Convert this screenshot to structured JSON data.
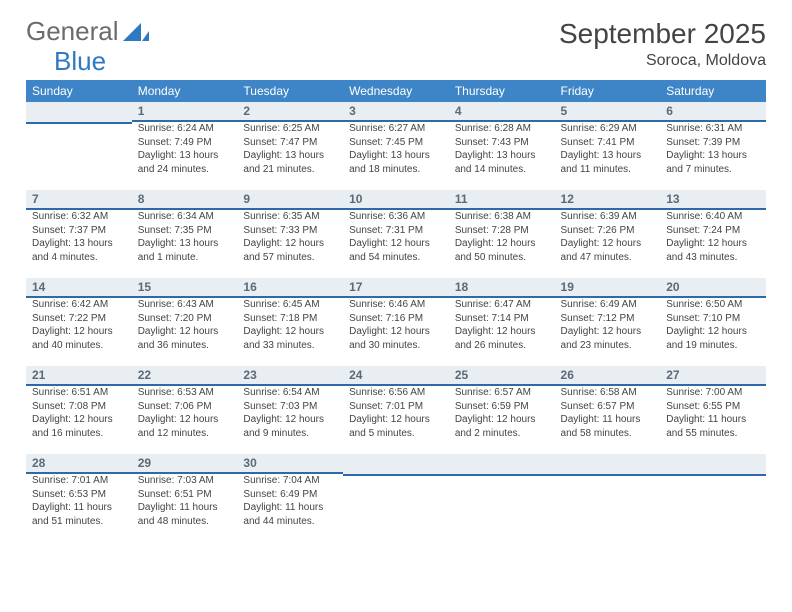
{
  "logo": {
    "word1": "General",
    "word2": "Blue"
  },
  "title": "September 2025",
  "location": "Soroca, Moldova",
  "colors": {
    "header_bg": "#3d85c6",
    "header_text": "#ffffff",
    "daynum_bg": "#e9eef2",
    "daynum_border": "#2f6aa8",
    "text": "#444444",
    "logo_gray": "#6b6b6b",
    "logo_blue": "#2f79c2"
  },
  "weekdays": [
    "Sunday",
    "Monday",
    "Tuesday",
    "Wednesday",
    "Thursday",
    "Friday",
    "Saturday"
  ],
  "weeks": [
    [
      {
        "day": "",
        "sunrise": "",
        "sunset": "",
        "daylight1": "",
        "daylight2": ""
      },
      {
        "day": "1",
        "sunrise": "Sunrise: 6:24 AM",
        "sunset": "Sunset: 7:49 PM",
        "daylight1": "Daylight: 13 hours",
        "daylight2": "and 24 minutes."
      },
      {
        "day": "2",
        "sunrise": "Sunrise: 6:25 AM",
        "sunset": "Sunset: 7:47 PM",
        "daylight1": "Daylight: 13 hours",
        "daylight2": "and 21 minutes."
      },
      {
        "day": "3",
        "sunrise": "Sunrise: 6:27 AM",
        "sunset": "Sunset: 7:45 PM",
        "daylight1": "Daylight: 13 hours",
        "daylight2": "and 18 minutes."
      },
      {
        "day": "4",
        "sunrise": "Sunrise: 6:28 AM",
        "sunset": "Sunset: 7:43 PM",
        "daylight1": "Daylight: 13 hours",
        "daylight2": "and 14 minutes."
      },
      {
        "day": "5",
        "sunrise": "Sunrise: 6:29 AM",
        "sunset": "Sunset: 7:41 PM",
        "daylight1": "Daylight: 13 hours",
        "daylight2": "and 11 minutes."
      },
      {
        "day": "6",
        "sunrise": "Sunrise: 6:31 AM",
        "sunset": "Sunset: 7:39 PM",
        "daylight1": "Daylight: 13 hours",
        "daylight2": "and 7 minutes."
      }
    ],
    [
      {
        "day": "7",
        "sunrise": "Sunrise: 6:32 AM",
        "sunset": "Sunset: 7:37 PM",
        "daylight1": "Daylight: 13 hours",
        "daylight2": "and 4 minutes."
      },
      {
        "day": "8",
        "sunrise": "Sunrise: 6:34 AM",
        "sunset": "Sunset: 7:35 PM",
        "daylight1": "Daylight: 13 hours",
        "daylight2": "and 1 minute."
      },
      {
        "day": "9",
        "sunrise": "Sunrise: 6:35 AM",
        "sunset": "Sunset: 7:33 PM",
        "daylight1": "Daylight: 12 hours",
        "daylight2": "and 57 minutes."
      },
      {
        "day": "10",
        "sunrise": "Sunrise: 6:36 AM",
        "sunset": "Sunset: 7:31 PM",
        "daylight1": "Daylight: 12 hours",
        "daylight2": "and 54 minutes."
      },
      {
        "day": "11",
        "sunrise": "Sunrise: 6:38 AM",
        "sunset": "Sunset: 7:28 PM",
        "daylight1": "Daylight: 12 hours",
        "daylight2": "and 50 minutes."
      },
      {
        "day": "12",
        "sunrise": "Sunrise: 6:39 AM",
        "sunset": "Sunset: 7:26 PM",
        "daylight1": "Daylight: 12 hours",
        "daylight2": "and 47 minutes."
      },
      {
        "day": "13",
        "sunrise": "Sunrise: 6:40 AM",
        "sunset": "Sunset: 7:24 PM",
        "daylight1": "Daylight: 12 hours",
        "daylight2": "and 43 minutes."
      }
    ],
    [
      {
        "day": "14",
        "sunrise": "Sunrise: 6:42 AM",
        "sunset": "Sunset: 7:22 PM",
        "daylight1": "Daylight: 12 hours",
        "daylight2": "and 40 minutes."
      },
      {
        "day": "15",
        "sunrise": "Sunrise: 6:43 AM",
        "sunset": "Sunset: 7:20 PM",
        "daylight1": "Daylight: 12 hours",
        "daylight2": "and 36 minutes."
      },
      {
        "day": "16",
        "sunrise": "Sunrise: 6:45 AM",
        "sunset": "Sunset: 7:18 PM",
        "daylight1": "Daylight: 12 hours",
        "daylight2": "and 33 minutes."
      },
      {
        "day": "17",
        "sunrise": "Sunrise: 6:46 AM",
        "sunset": "Sunset: 7:16 PM",
        "daylight1": "Daylight: 12 hours",
        "daylight2": "and 30 minutes."
      },
      {
        "day": "18",
        "sunrise": "Sunrise: 6:47 AM",
        "sunset": "Sunset: 7:14 PM",
        "daylight1": "Daylight: 12 hours",
        "daylight2": "and 26 minutes."
      },
      {
        "day": "19",
        "sunrise": "Sunrise: 6:49 AM",
        "sunset": "Sunset: 7:12 PM",
        "daylight1": "Daylight: 12 hours",
        "daylight2": "and 23 minutes."
      },
      {
        "day": "20",
        "sunrise": "Sunrise: 6:50 AM",
        "sunset": "Sunset: 7:10 PM",
        "daylight1": "Daylight: 12 hours",
        "daylight2": "and 19 minutes."
      }
    ],
    [
      {
        "day": "21",
        "sunrise": "Sunrise: 6:51 AM",
        "sunset": "Sunset: 7:08 PM",
        "daylight1": "Daylight: 12 hours",
        "daylight2": "and 16 minutes."
      },
      {
        "day": "22",
        "sunrise": "Sunrise: 6:53 AM",
        "sunset": "Sunset: 7:06 PM",
        "daylight1": "Daylight: 12 hours",
        "daylight2": "and 12 minutes."
      },
      {
        "day": "23",
        "sunrise": "Sunrise: 6:54 AM",
        "sunset": "Sunset: 7:03 PM",
        "daylight1": "Daylight: 12 hours",
        "daylight2": "and 9 minutes."
      },
      {
        "day": "24",
        "sunrise": "Sunrise: 6:56 AM",
        "sunset": "Sunset: 7:01 PM",
        "daylight1": "Daylight: 12 hours",
        "daylight2": "and 5 minutes."
      },
      {
        "day": "25",
        "sunrise": "Sunrise: 6:57 AM",
        "sunset": "Sunset: 6:59 PM",
        "daylight1": "Daylight: 12 hours",
        "daylight2": "and 2 minutes."
      },
      {
        "day": "26",
        "sunrise": "Sunrise: 6:58 AM",
        "sunset": "Sunset: 6:57 PM",
        "daylight1": "Daylight: 11 hours",
        "daylight2": "and 58 minutes."
      },
      {
        "day": "27",
        "sunrise": "Sunrise: 7:00 AM",
        "sunset": "Sunset: 6:55 PM",
        "daylight1": "Daylight: 11 hours",
        "daylight2": "and 55 minutes."
      }
    ],
    [
      {
        "day": "28",
        "sunrise": "Sunrise: 7:01 AM",
        "sunset": "Sunset: 6:53 PM",
        "daylight1": "Daylight: 11 hours",
        "daylight2": "and 51 minutes."
      },
      {
        "day": "29",
        "sunrise": "Sunrise: 7:03 AM",
        "sunset": "Sunset: 6:51 PM",
        "daylight1": "Daylight: 11 hours",
        "daylight2": "and 48 minutes."
      },
      {
        "day": "30",
        "sunrise": "Sunrise: 7:04 AM",
        "sunset": "Sunset: 6:49 PM",
        "daylight1": "Daylight: 11 hours",
        "daylight2": "and 44 minutes."
      },
      {
        "day": "",
        "sunrise": "",
        "sunset": "",
        "daylight1": "",
        "daylight2": ""
      },
      {
        "day": "",
        "sunrise": "",
        "sunset": "",
        "daylight1": "",
        "daylight2": ""
      },
      {
        "day": "",
        "sunrise": "",
        "sunset": "",
        "daylight1": "",
        "daylight2": ""
      },
      {
        "day": "",
        "sunrise": "",
        "sunset": "",
        "daylight1": "",
        "daylight2": ""
      }
    ]
  ]
}
